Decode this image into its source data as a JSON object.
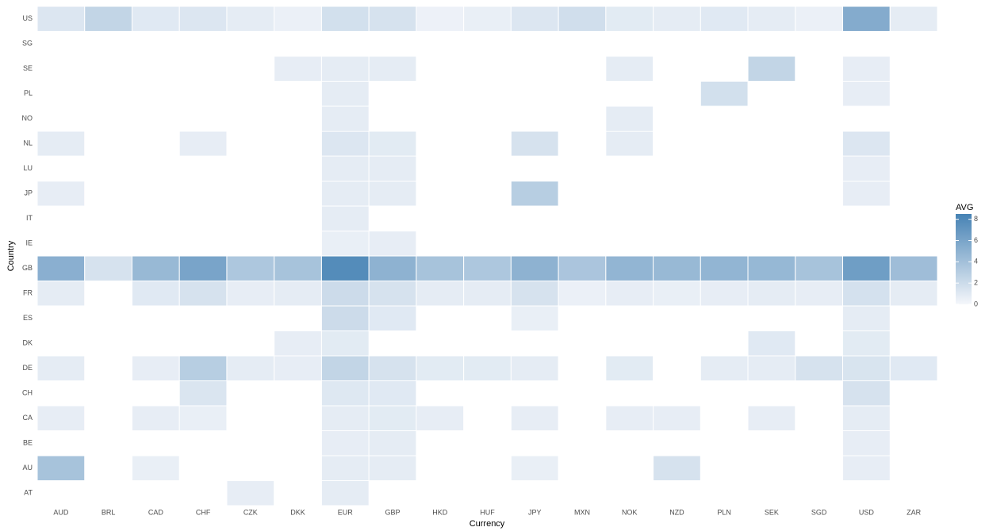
{
  "chart_data": {
    "type": "heatmap",
    "x_label": "Currency",
    "y_label": "Country",
    "x_categories": [
      "AUD",
      "BRL",
      "CAD",
      "CHF",
      "CZK",
      "DKK",
      "EUR",
      "GBP",
      "HKD",
      "HUF",
      "JPY",
      "MXN",
      "NOK",
      "NZD",
      "PLN",
      "SEK",
      "SGD",
      "USD",
      "ZAR"
    ],
    "y_categories": [
      "US",
      "SG",
      "SE",
      "PL",
      "NO",
      "NL",
      "LU",
      "JP",
      "IT",
      "IE",
      "GB",
      "FR",
      "ES",
      "DK",
      "DE",
      "CH",
      "CA",
      "BE",
      "AU",
      "AT"
    ],
    "z": [
      [
        1.2,
        2.5,
        1,
        1.2,
        0.8,
        0.5,
        1.7,
        1.5,
        0.4,
        0.6,
        1.2,
        1.8,
        0.9,
        0.8,
        1,
        0.8,
        0.5,
        5.5,
        0.8
      ],
      [
        null,
        null,
        null,
        null,
        null,
        null,
        null,
        null,
        null,
        null,
        null,
        null,
        null,
        null,
        null,
        null,
        null,
        null,
        null
      ],
      [
        null,
        null,
        null,
        null,
        null,
        0.7,
        0.8,
        0.8,
        null,
        null,
        null,
        null,
        0.8,
        null,
        null,
        2.5,
        null,
        0.7,
        null
      ],
      [
        null,
        null,
        null,
        null,
        null,
        null,
        0.8,
        null,
        null,
        null,
        null,
        null,
        null,
        null,
        1.7,
        null,
        null,
        0.7,
        null
      ],
      [
        null,
        null,
        null,
        null,
        null,
        null,
        0.8,
        null,
        null,
        null,
        null,
        null,
        0.8,
        null,
        null,
        null,
        null,
        null,
        null
      ],
      [
        0.8,
        null,
        null,
        0.7,
        null,
        null,
        1.2,
        0.9,
        null,
        null,
        1.5,
        null,
        0.8,
        null,
        null,
        null,
        null,
        1.2,
        null
      ],
      [
        null,
        null,
        null,
        null,
        null,
        null,
        0.8,
        0.8,
        null,
        null,
        null,
        null,
        null,
        null,
        null,
        null,
        null,
        0.7,
        null
      ],
      [
        0.7,
        null,
        null,
        null,
        null,
        null,
        0.8,
        0.8,
        null,
        null,
        3,
        null,
        null,
        null,
        null,
        null,
        null,
        0.7,
        null
      ],
      [
        null,
        null,
        null,
        null,
        null,
        null,
        0.8,
        null,
        null,
        null,
        null,
        null,
        null,
        null,
        null,
        null,
        null,
        null,
        null
      ],
      [
        null,
        null,
        null,
        null,
        null,
        null,
        0.6,
        0.7,
        null,
        null,
        null,
        null,
        null,
        null,
        null,
        null,
        null,
        null,
        null
      ],
      [
        5.2,
        1.5,
        4.5,
        6,
        3.5,
        3.8,
        7.8,
        5,
        3.8,
        3.5,
        5,
        3.6,
        4.8,
        4.5,
        4.8,
        4.6,
        3.8,
        6.5,
        4.2
      ],
      [
        0.8,
        null,
        1,
        1.5,
        0.7,
        0.8,
        2,
        1.5,
        0.8,
        0.8,
        1.5,
        0.5,
        0.7,
        0.6,
        0.7,
        0.8,
        0.7,
        1.6,
        0.8
      ],
      [
        null,
        null,
        null,
        null,
        null,
        null,
        2,
        1,
        null,
        null,
        0.6,
        null,
        null,
        null,
        null,
        null,
        null,
        0.8,
        null
      ],
      [
        null,
        null,
        null,
        null,
        null,
        0.7,
        0.9,
        null,
        null,
        null,
        null,
        null,
        null,
        null,
        null,
        1,
        null,
        0.9,
        null
      ],
      [
        0.8,
        null,
        0.7,
        3,
        0.8,
        0.7,
        2.5,
        1.5,
        0.9,
        0.9,
        0.8,
        null,
        0.9,
        null,
        0.8,
        0.8,
        1.5,
        1.4,
        1
      ],
      [
        null,
        null,
        null,
        1.3,
        null,
        null,
        1.1,
        1,
        null,
        null,
        null,
        null,
        null,
        null,
        null,
        null,
        null,
        1.5,
        null
      ],
      [
        0.7,
        null,
        0.7,
        0.6,
        null,
        null,
        0.8,
        0.9,
        0.7,
        null,
        0.7,
        null,
        0.7,
        0.7,
        null,
        0.7,
        null,
        0.8,
        null
      ],
      [
        null,
        null,
        null,
        null,
        null,
        null,
        0.7,
        0.8,
        null,
        null,
        null,
        null,
        null,
        null,
        null,
        null,
        null,
        0.7,
        null
      ],
      [
        3.8,
        null,
        0.6,
        null,
        null,
        null,
        0.8,
        0.8,
        null,
        null,
        0.6,
        null,
        null,
        1.5,
        null,
        null,
        null,
        0.7,
        null
      ],
      [
        null,
        null,
        null,
        null,
        0.7,
        null,
        0.8,
        null,
        null,
        null,
        null,
        null,
        null,
        null,
        null,
        null,
        null,
        null,
        null
      ]
    ],
    "colorbar_title": "AVG",
    "zlim": [
      0,
      8.5
    ],
    "zticks": [
      0,
      2,
      4,
      6,
      8
    ],
    "color_low": "#f5f7fb",
    "color_high": "#4682b4"
  }
}
